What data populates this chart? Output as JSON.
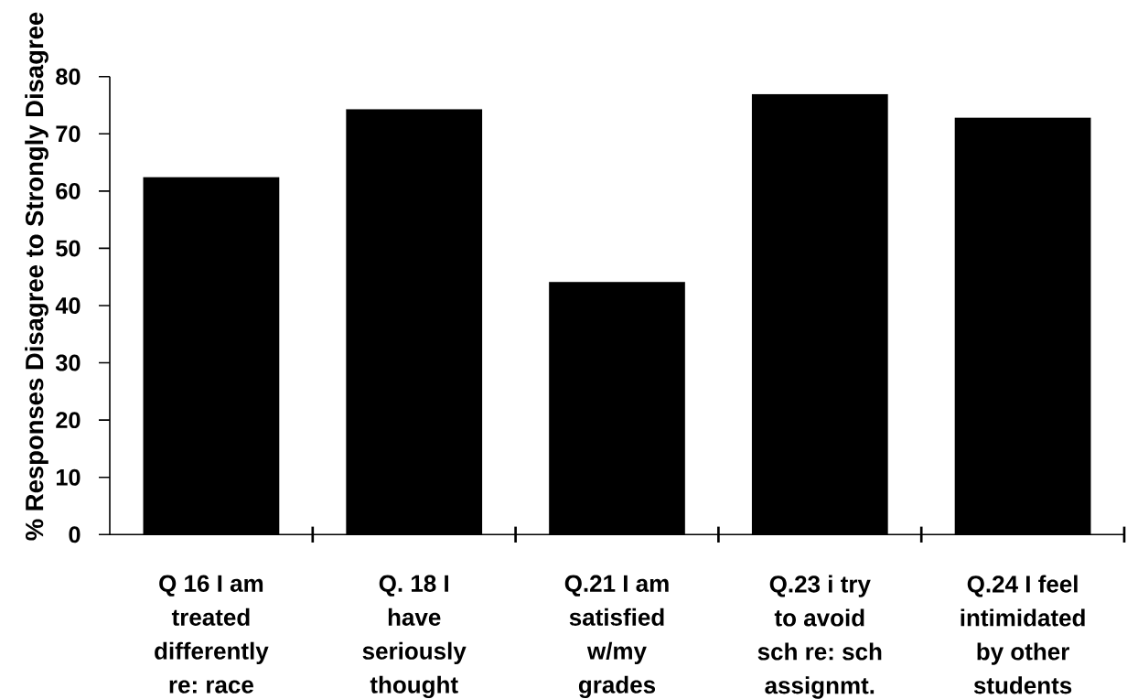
{
  "chart_data": {
    "type": "bar",
    "ylabel": "% Responses Disagree to Strongly Disagree",
    "categories": [
      "Q 16 I am\ntreated\ndifferently\nre: race",
      "Q. 18 I\nhave\nseriously\nthought",
      "Q.21 I am\nsatisfied\nw/my\ngrades",
      "Q.23 i try\nto avoid\nsch re: sch\nassignmt.",
      "Q.24 I feel\nintimidated\nby other\nstudents"
    ],
    "values": [
      62.4,
      74.3,
      44.1,
      76.9,
      72.8
    ],
    "color": "#000000",
    "ylim": [
      0,
      80
    ],
    "yticks": [
      0,
      10,
      20,
      30,
      40,
      50,
      60,
      70,
      80
    ]
  }
}
